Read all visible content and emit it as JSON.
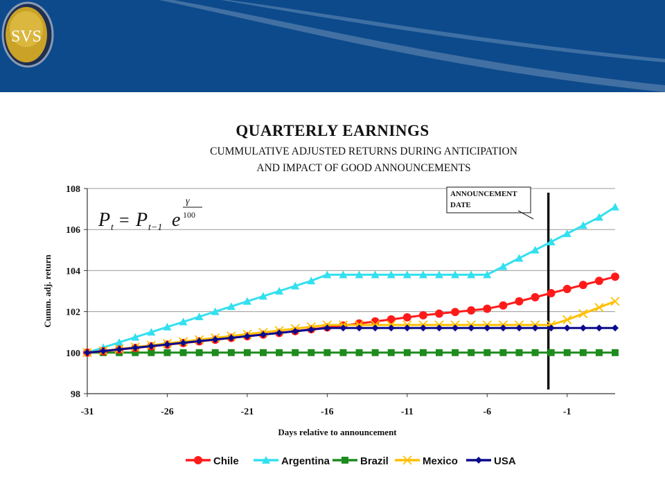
{
  "slide": {
    "logo_text": "SVS",
    "colors": {
      "banner": "#0d4a8c",
      "logo_gold": "#c9a227"
    }
  },
  "chart_data": {
    "type": "line",
    "title": "QUARTERLY EARNINGS",
    "subtitle_lines": [
      "CUMMULATIVE ADJUSTED RETURNS DURING ANTICIPATION",
      "AND IMPACT OF GOOD ANNOUNCEMENTS"
    ],
    "xlabel": "Days relative to announcement",
    "ylabel": "Cumm. adj. return",
    "xlim": [
      -31,
      2
    ],
    "ylim": [
      98,
      108
    ],
    "x_ticks": [
      -31,
      -26,
      -21,
      -16,
      -11,
      -6,
      -1
    ],
    "y_ticks": [
      98,
      100,
      102,
      104,
      106,
      108
    ],
    "grid": "horizontal",
    "formula": {
      "lhs": "P",
      "lhs_sub": "t",
      "rhs": "P",
      "rhs_sub": "t−1",
      "base": "e",
      "exp_num": "γ",
      "exp_den": "100"
    },
    "annotation": {
      "text_lines": [
        "ANNOUNCEMENT",
        "DATE"
      ],
      "x": -2
    },
    "x": [
      -31,
      -30,
      -29,
      -28,
      -27,
      -26,
      -25,
      -24,
      -23,
      -22,
      -21,
      -20,
      -19,
      -18,
      -17,
      -16,
      -15,
      -14,
      -13,
      -12,
      -11,
      -10,
      -9,
      -8,
      -7,
      -6,
      -5,
      -4,
      -3,
      -2,
      -1,
      0,
      1,
      2
    ],
    "series": [
      {
        "name": "Chile",
        "color": "#ff1a1a",
        "marker": "circle",
        "values": [
          100,
          100.07,
          100.15,
          100.23,
          100.31,
          100.39,
          100.47,
          100.55,
          100.63,
          100.72,
          100.8,
          100.88,
          100.96,
          101.05,
          101.14,
          101.23,
          101.32,
          101.42,
          101.52,
          101.62,
          101.72,
          101.82,
          101.9,
          101.98,
          102.06,
          102.14,
          102.3,
          102.5,
          102.7,
          102.9,
          103.1,
          103.3,
          103.5,
          103.7
        ]
      },
      {
        "name": "Argentina",
        "color": "#33e0f0",
        "marker": "triangle",
        "values": [
          100,
          100.25,
          100.5,
          100.75,
          101,
          101.25,
          101.5,
          101.75,
          102,
          102.25,
          102.5,
          102.75,
          103,
          103.25,
          103.5,
          103.8,
          103.8,
          103.8,
          103.8,
          103.8,
          103.8,
          103.8,
          103.8,
          103.8,
          103.8,
          103.8,
          104.2,
          104.6,
          105,
          105.4,
          105.8,
          106.2,
          106.6,
          107.1
        ]
      },
      {
        "name": "Brazil",
        "color": "#1d8c1d",
        "marker": "square",
        "values": [
          100,
          100,
          100,
          100,
          100,
          100,
          100,
          100,
          100,
          100,
          100,
          100,
          100,
          100,
          100,
          100,
          100,
          100,
          100,
          100,
          100,
          100,
          100,
          100,
          100,
          100,
          100,
          100,
          100,
          100,
          100,
          100,
          100,
          100
        ]
      },
      {
        "name": "Mexico",
        "color": "#ffc000",
        "marker": "x",
        "values": [
          100,
          100.09,
          100.18,
          100.27,
          100.36,
          100.45,
          100.54,
          100.63,
          100.72,
          100.81,
          100.9,
          100.99,
          101.08,
          101.17,
          101.26,
          101.35,
          101.35,
          101.35,
          101.35,
          101.35,
          101.35,
          101.35,
          101.35,
          101.35,
          101.35,
          101.35,
          101.35,
          101.35,
          101.35,
          101.35,
          101.6,
          101.9,
          102.2,
          102.5
        ]
      },
      {
        "name": "USA",
        "color": "#0a0a8c",
        "marker": "diamond",
        "values": [
          100,
          100.08,
          100.16,
          100.24,
          100.32,
          100.4,
          100.48,
          100.56,
          100.64,
          100.72,
          100.8,
          100.88,
          100.96,
          101.04,
          101.12,
          101.2,
          101.2,
          101.2,
          101.2,
          101.2,
          101.2,
          101.2,
          101.2,
          101.2,
          101.2,
          101.2,
          101.2,
          101.2,
          101.2,
          101.2,
          101.2,
          101.2,
          101.2,
          101.2
        ]
      }
    ]
  }
}
